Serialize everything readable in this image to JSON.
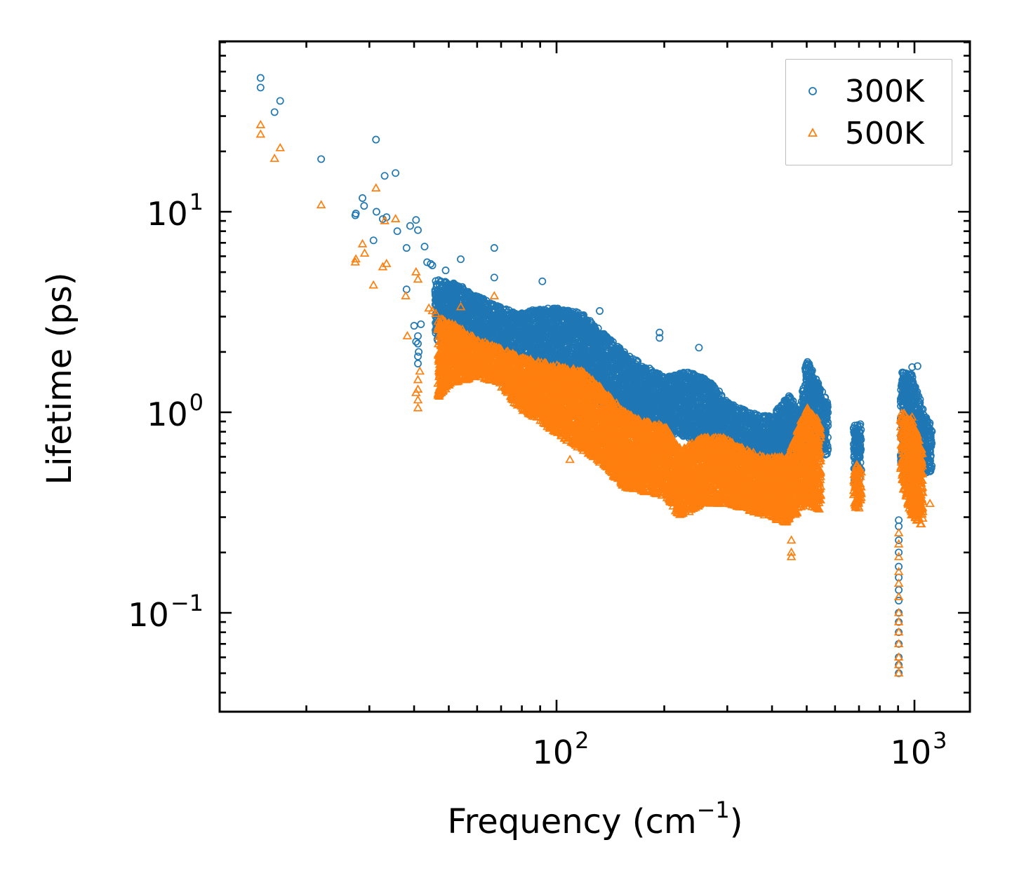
{
  "chart_data": {
    "type": "scatter",
    "title": "",
    "xlabel_prefix": "Frequency (cm",
    "xlabel_sup": "−1",
    "xlabel_suffix": ")",
    "ylabel": "Lifetime (ps)",
    "xscale": "log",
    "yscale": "log",
    "xlim": [
      11.6,
      1390
    ],
    "ylim": [
      0.032,
      72
    ],
    "grid": false,
    "legend": {
      "position": "top-right"
    },
    "xticks": [
      {
        "value": 100,
        "base": "10",
        "exp": "2"
      },
      {
        "value": 1000,
        "base": "10",
        "exp": "3"
      }
    ],
    "yticks": [
      {
        "value": 10,
        "base": "10",
        "exp": "1"
      },
      {
        "value": 1,
        "base": "10",
        "exp": "0"
      },
      {
        "value": 0.1,
        "base": "10",
        "exp": "−1"
      }
    ],
    "series": [
      {
        "name": "300K",
        "color": "#1f77b4",
        "marker": "circle",
        "points": [
          [
            14.9,
            46.5
          ],
          [
            14.9,
            41.6
          ],
          [
            16.3,
            31.4
          ],
          [
            16.9,
            35.7
          ],
          [
            22.0,
            18.3
          ],
          [
            31.3,
            22.9
          ],
          [
            33.1,
            15.1
          ],
          [
            35.5,
            15.6
          ],
          [
            28.7,
            11.7
          ],
          [
            29.0,
            10.7
          ],
          [
            27.4,
            9.6
          ],
          [
            27.5,
            9.8
          ],
          [
            31.4,
            10.0
          ],
          [
            32.7,
            9.2
          ],
          [
            33.5,
            9.4
          ],
          [
            30.8,
            7.2
          ],
          [
            35.9,
            8.0
          ],
          [
            39.0,
            8.5
          ],
          [
            40.5,
            9.1
          ],
          [
            41.0,
            8.1
          ],
          [
            38.1,
            6.6
          ],
          [
            42.8,
            6.7
          ],
          [
            38.1,
            4.1
          ],
          [
            40.0,
            2.7
          ],
          [
            41.8,
            2.75
          ],
          [
            41.0,
            2.4
          ],
          [
            41.0,
            2.2
          ],
          [
            41.2,
            2.0
          ],
          [
            41.0,
            1.9
          ],
          [
            41.0,
            1.75
          ],
          [
            40.5,
            2.25
          ],
          [
            43.5,
            5.6
          ],
          [
            44.5,
            5.5
          ],
          [
            45.0,
            5.4
          ],
          [
            47.5,
            4.5
          ],
          [
            49,
            5.1
          ],
          [
            50,
            4.3
          ],
          [
            67,
            6.6
          ],
          [
            67,
            4.7
          ],
          [
            54,
            5.8
          ],
          [
            91.3,
            4.5
          ],
          [
            132,
            3.2
          ],
          [
            194,
            2.5
          ],
          [
            194,
            2.35
          ],
          [
            250,
            2.1
          ],
          [
            110,
            0.98
          ],
          [
            453,
            0.4
          ],
          [
            453,
            0.43
          ],
          [
            904,
            0.29
          ],
          [
            904,
            0.27
          ],
          [
            904,
            0.23
          ],
          [
            904,
            0.2
          ],
          [
            904,
            0.17
          ],
          [
            904,
            0.15
          ],
          [
            904,
            0.13
          ],
          [
            904,
            0.115
          ],
          [
            904,
            0.1
          ],
          [
            904,
            0.09
          ],
          [
            904,
            0.08
          ],
          [
            904,
            0.07
          ],
          [
            904,
            0.06
          ],
          [
            904,
            0.055
          ],
          [
            904,
            0.05
          ],
          [
            1020,
            1.7
          ],
          [
            985,
            1.68
          ]
        ],
        "bands": [
          [
            [
              46,
              2.3,
              4.6
            ],
            [
              52.4,
              2.0,
              4.4
            ],
            [
              60,
              2.2,
              3.8
            ],
            [
              68.8,
              2.0,
              3.4
            ],
            [
              78.7,
              1.8,
              3.1
            ],
            [
              90,
              1.6,
              3.3
            ],
            [
              103,
              1.5,
              3.3
            ],
            [
              118,
              1.3,
              3.1
            ],
            [
              135,
              1.1,
              2.5
            ],
            [
              155,
              0.95,
              2.0
            ],
            [
              177,
              0.85,
              1.7
            ],
            [
              203,
              0.8,
              1.5
            ],
            [
              232,
              0.75,
              1.6
            ],
            [
              266,
              0.65,
              1.45
            ],
            [
              305,
              0.65,
              1.1
            ],
            [
              349,
              0.58,
              1.0
            ],
            [
              400,
              0.55,
              0.95
            ],
            [
              448,
              0.45,
              1.25
            ],
            [
              479,
              0.5,
              1.0
            ],
            [
              501,
              0.7,
              1.9
            ],
            [
              535,
              0.65,
              1.4
            ],
            [
              573,
              0.6,
              1.1
            ]
          ],
          [
            [
              693,
              0.45,
              0.88
            ]
          ],
          [
            [
              921,
              0.55,
              1.6
            ],
            [
              985,
              0.45,
              1.55
            ],
            [
              1055,
              0.5,
              1.0
            ],
            [
              1120,
              0.5,
              0.85
            ]
          ]
        ]
      },
      {
        "name": "500K",
        "color": "#ff7f0e",
        "marker": "triangle",
        "points": [
          [
            14.9,
            27.1
          ],
          [
            14.9,
            24.3
          ],
          [
            16.3,
            18.4
          ],
          [
            16.9,
            20.8
          ],
          [
            22.0,
            10.8
          ],
          [
            31.3,
            13.1
          ],
          [
            33.1,
            9.0
          ],
          [
            35.5,
            9.2
          ],
          [
            27.4,
            5.6
          ],
          [
            27.5,
            5.8
          ],
          [
            28.7,
            6.9
          ],
          [
            29.1,
            6.2
          ],
          [
            30.8,
            4.3
          ],
          [
            32.7,
            5.3
          ],
          [
            33.5,
            5.5
          ],
          [
            37.9,
            3.8
          ],
          [
            38.3,
            2.4
          ],
          [
            40.5,
            5.0
          ],
          [
            41,
            4.6
          ],
          [
            41,
            1.05
          ],
          [
            41,
            1.15
          ],
          [
            41,
            1.3
          ],
          [
            41,
            1.45
          ],
          [
            40.5,
            1.25
          ],
          [
            41.5,
            1.6
          ],
          [
            44,
            3.3
          ],
          [
            45,
            3.2
          ],
          [
            46,
            3.1
          ],
          [
            47,
            1.3
          ],
          [
            47,
            1.2
          ],
          [
            47,
            1.5
          ],
          [
            67,
            3.8
          ],
          [
            54,
            3.35
          ],
          [
            109,
            0.58
          ],
          [
            453,
            0.2
          ],
          [
            453,
            0.23
          ],
          [
            453,
            0.19
          ],
          [
            904,
            0.25
          ],
          [
            904,
            0.22
          ],
          [
            904,
            0.19
          ],
          [
            904,
            0.16
          ],
          [
            904,
            0.14
          ],
          [
            904,
            0.12
          ],
          [
            904,
            0.1
          ],
          [
            904,
            0.09
          ],
          [
            904,
            0.08
          ],
          [
            904,
            0.07
          ],
          [
            904,
            0.06
          ],
          [
            904,
            0.055
          ],
          [
            904,
            0.05
          ],
          [
            1105,
            0.35
          ]
        ],
        "bands": [
          [
            [
              46.9,
              1.2,
              3.0
            ],
            [
              52.4,
              1.4,
              2.7
            ],
            [
              60,
              1.5,
              2.3
            ],
            [
              68.8,
              1.4,
              2.1
            ],
            [
              78.7,
              1.05,
              1.9
            ],
            [
              90,
              0.9,
              1.8
            ],
            [
              103,
              0.75,
              1.7
            ],
            [
              118,
              0.65,
              1.6
            ],
            [
              135,
              0.55,
              1.3
            ],
            [
              155,
              0.42,
              1.0
            ],
            [
              177,
              0.4,
              0.9
            ],
            [
              203,
              0.38,
              0.85
            ],
            [
              222,
              0.3,
              0.65
            ],
            [
              255,
              0.35,
              0.75
            ],
            [
              294,
              0.35,
              0.75
            ],
            [
              336,
              0.33,
              0.65
            ],
            [
              384,
              0.3,
              0.6
            ],
            [
              439,
              0.28,
              0.6
            ],
            [
              501,
              0.35,
              1.05
            ],
            [
              548,
              0.32,
              0.9
            ]
          ],
          [
            [
              693,
              0.33,
              0.55
            ]
          ],
          [
            [
              921,
              0.45,
              1.0
            ],
            [
              985,
              0.3,
              0.95
            ],
            [
              1055,
              0.27,
              0.65
            ]
          ]
        ]
      }
    ]
  }
}
